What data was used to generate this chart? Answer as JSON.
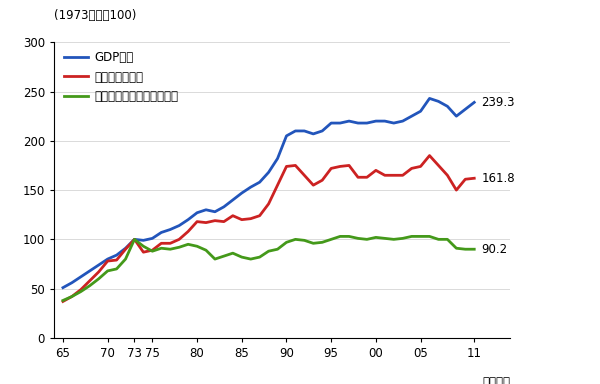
{
  "years": [
    1965,
    1966,
    1967,
    1968,
    1969,
    1970,
    1971,
    1972,
    1973,
    1974,
    1975,
    1976,
    1977,
    1978,
    1979,
    1980,
    1981,
    1982,
    1983,
    1984,
    1985,
    1986,
    1987,
    1988,
    1989,
    1990,
    1991,
    1992,
    1993,
    1994,
    1995,
    1996,
    1997,
    1998,
    1999,
    2000,
    2001,
    2002,
    2003,
    2004,
    2005,
    2006,
    2007,
    2008,
    2009,
    2010,
    2011
  ],
  "gdp": [
    51,
    56,
    62,
    68,
    74,
    80,
    84,
    91,
    100,
    99,
    101,
    107,
    110,
    114,
    120,
    127,
    130,
    128,
    133,
    140,
    147,
    153,
    158,
    168,
    182,
    205,
    210,
    210,
    207,
    210,
    218,
    218,
    220,
    218,
    218,
    220,
    220,
    218,
    220,
    225,
    230,
    243,
    240,
    235,
    225,
    232,
    239
  ],
  "mfg": [
    37,
    42,
    49,
    58,
    67,
    78,
    79,
    90,
    100,
    87,
    89,
    96,
    96,
    100,
    108,
    118,
    117,
    119,
    118,
    124,
    120,
    121,
    124,
    136,
    155,
    174,
    175,
    165,
    155,
    160,
    172,
    174,
    175,
    163,
    163,
    170,
    165,
    165,
    165,
    172,
    174,
    185,
    175,
    165,
    150,
    161,
    162
  ],
  "energy": [
    38,
    42,
    47,
    53,
    60,
    68,
    70,
    80,
    100,
    93,
    88,
    91,
    90,
    92,
    95,
    93,
    89,
    80,
    83,
    86,
    82,
    80,
    82,
    88,
    90,
    97,
    100,
    99,
    96,
    97,
    100,
    103,
    103,
    101,
    100,
    102,
    101,
    100,
    101,
    103,
    103,
    103,
    100,
    100,
    91,
    90,
    90
  ],
  "gdp_color": "#2255bb",
  "mfg_color": "#cc2222",
  "energy_color": "#44991a",
  "gdp_label": "GDP指数",
  "mfg_label": "製造業生産指数",
  "energy_label": "製造業エネルギー消費指数",
  "top_label": "(1973年度＝100)",
  "bottom_label": "（年度）",
  "gdp_end_val": "239.3",
  "mfg_end_val": "161.8",
  "energy_end_val": "90.2",
  "ylim": [
    0,
    300
  ],
  "yticks": [
    0,
    50,
    100,
    150,
    200,
    250,
    300
  ],
  "xtick_pos": [
    1965,
    1970,
    1973,
    1975,
    1980,
    1985,
    1990,
    1995,
    2000,
    2005,
    2011
  ],
  "xtick_labels": [
    "65",
    "70",
    "73",
    "75",
    "80",
    "85",
    "90",
    "95",
    "00",
    "05",
    "11"
  ]
}
